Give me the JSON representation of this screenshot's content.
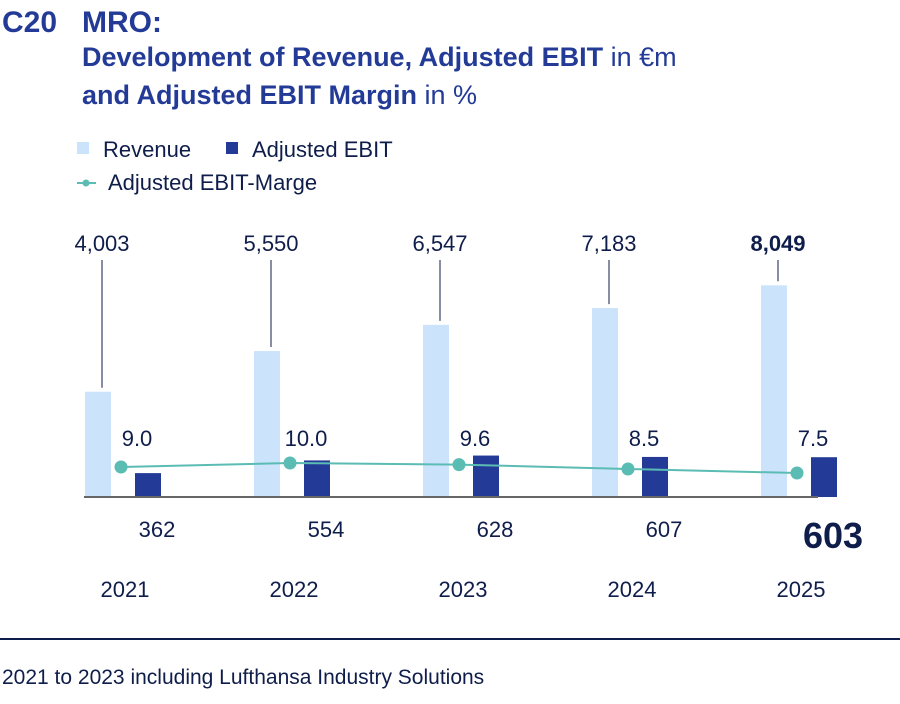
{
  "header": {
    "code": "C20",
    "title_line1": "MRO:",
    "title_line2_bold": "Development of Revenue, Adjusted EBIT",
    "title_line2_unit": " in €m",
    "title_line3_bold": "and Adjusted EBIT Margin",
    "title_line3_unit": " in %"
  },
  "footnote": "2021 to 2023 including Lufthansa Industry Solutions",
  "colors": {
    "revenue": "#cce3fc",
    "ebit": "#233b97",
    "margin": "#5bbcb4",
    "text": "#0f1d4a"
  },
  "chart_data": {
    "type": "bar",
    "categories": [
      "2021",
      "2022",
      "2023",
      "2024",
      "2025"
    ],
    "series": [
      {
        "name": "Revenue",
        "type": "bar",
        "values": [
          4003,
          5550,
          6547,
          7183,
          8049
        ],
        "labels": [
          "4,003",
          "5,550",
          "6,547",
          "7,183",
          "8,049"
        ]
      },
      {
        "name": "Adjusted EBIT",
        "type": "bar",
        "values": [
          362,
          554,
          628,
          607,
          603
        ],
        "labels": [
          "362",
          "554",
          "628",
          "607",
          "603"
        ]
      },
      {
        "name": "Adjusted EBIT-Marge",
        "type": "line",
        "values": [
          9.0,
          10.0,
          9.6,
          8.5,
          7.5
        ],
        "labels": [
          "9.0",
          "10.0",
          "9.6",
          "8.5",
          "7.5"
        ]
      }
    ],
    "legend": [
      "Revenue",
      "Adjusted EBIT",
      "Adjusted EBIT-Marge"
    ],
    "legend_placement": "top-left",
    "highlight_category": "2025"
  }
}
